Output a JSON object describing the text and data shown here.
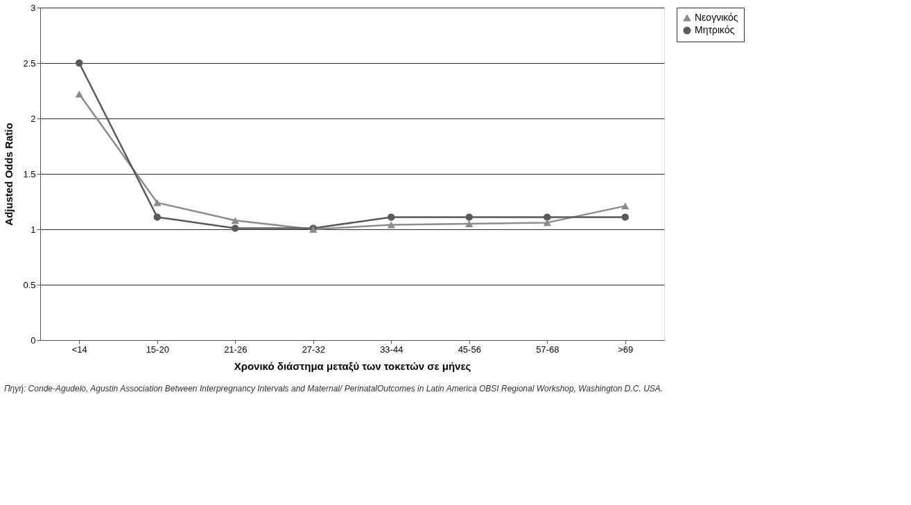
{
  "chart_data": {
    "type": "line",
    "xlabel": "Χρονικό διάστημα μεταξύ των τοκετών σε μήνες",
    "ylabel": "Adjusted Odds Ratio",
    "categories": [
      "<14",
      "15-20",
      "21-26",
      "27-32",
      "33-44",
      "45-56",
      "57-68",
      ">69"
    ],
    "series": [
      {
        "name": "Νεογνικός",
        "color": "#8c8c8c",
        "marker": "triangle",
        "values": [
          2.22,
          1.24,
          1.08,
          1.0,
          1.04,
          1.05,
          1.06,
          1.21
        ]
      },
      {
        "name": "Μητρικός",
        "color": "#5a5a5a",
        "marker": "circle",
        "values": [
          2.5,
          1.11,
          1.01,
          1.01,
          1.11,
          1.11,
          1.11,
          1.11
        ]
      }
    ],
    "ylim": [
      0,
      3
    ],
    "yticks": [
      0,
      0.5,
      1,
      1.5,
      2,
      2.5,
      3
    ],
    "grid": "y",
    "legend": "top right",
    "line_style": "solid",
    "annotations": [
      "Πηγή: Conde-Agudelo, Agustin Association Between Interpregnancy Intervals and Maternal/ PerinatalOutcomes in Latin America OBSI Regional Workshop, Washington D.C. USA."
    ]
  }
}
